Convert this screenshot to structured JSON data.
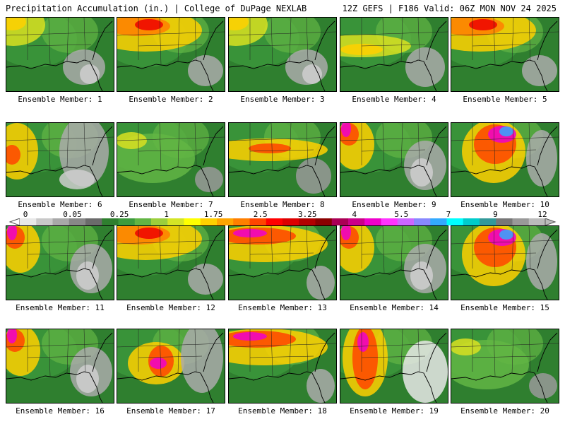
{
  "header": {
    "title": "Precipitation Accumulation (in.) | College of DuPage NEXLAB",
    "valid": "12Z GEFS | F186 Valid: 06Z MON NOV 24 2025"
  },
  "members": [
    {
      "label": "Ensemble Member: 1",
      "pattern": "nw-yellow"
    },
    {
      "label": "Ensemble Member: 2",
      "pattern": "north-red"
    },
    {
      "label": "Ensemble Member: 3",
      "pattern": "nw-yellow"
    },
    {
      "label": "Ensemble Member: 4",
      "pattern": "diag-yellow"
    },
    {
      "label": "Ensemble Member: 5",
      "pattern": "north-red"
    },
    {
      "label": "Ensemble Member: 6",
      "pattern": "west-red"
    },
    {
      "label": "Ensemble Member: 7",
      "pattern": "green"
    },
    {
      "label": "Ensemble Member: 8",
      "pattern": "band-red"
    },
    {
      "label": "Ensemble Member: 9",
      "pattern": "nw-magenta"
    },
    {
      "label": "Ensemble Member: 10",
      "pattern": "center-magenta"
    },
    {
      "label": "Ensemble Member: 11",
      "pattern": "nw-magenta"
    },
    {
      "label": "Ensemble Member: 12",
      "pattern": "north-red"
    },
    {
      "label": "Ensemble Member: 13",
      "pattern": "north-magenta"
    },
    {
      "label": "Ensemble Member: 14",
      "pattern": "nw-magenta"
    },
    {
      "label": "Ensemble Member: 15",
      "pattern": "center-magenta"
    },
    {
      "label": "Ensemble Member: 16",
      "pattern": "nw-magenta"
    },
    {
      "label": "Ensemble Member: 17",
      "pattern": "gulf-magenta"
    },
    {
      "label": "Ensemble Member: 18",
      "pattern": "north-magenta"
    },
    {
      "label": "Ensemble Member: 19",
      "pattern": "west-band"
    },
    {
      "label": "Ensemble Member: 20",
      "pattern": "green"
    }
  ],
  "legend": {
    "labels": [
      "0",
      "0.05",
      "0.25",
      "1",
      "1.75",
      "2.5",
      "3.25",
      "4",
      "5.5",
      "7",
      "9",
      "12"
    ],
    "colors": [
      "#e8e8e8",
      "#c8c8c8",
      "#a8a8a8",
      "#888888",
      "#6b6b6b",
      "#2f7f2f",
      "#3d9b3d",
      "#62b544",
      "#9bcf3c",
      "#d4e526",
      "#ffff00",
      "#ffd000",
      "#ffa500",
      "#ff7f00",
      "#ff4500",
      "#ff0000",
      "#dd0000",
      "#b30000",
      "#8b0000",
      "#aa0055",
      "#cc0088",
      "#ee00cc",
      "#ff33ff",
      "#cc66ff",
      "#8888ff",
      "#33aaff",
      "#00ffff",
      "#00cccc",
      "#339999",
      "#777777",
      "#999999",
      "#bbbbbb"
    ]
  }
}
